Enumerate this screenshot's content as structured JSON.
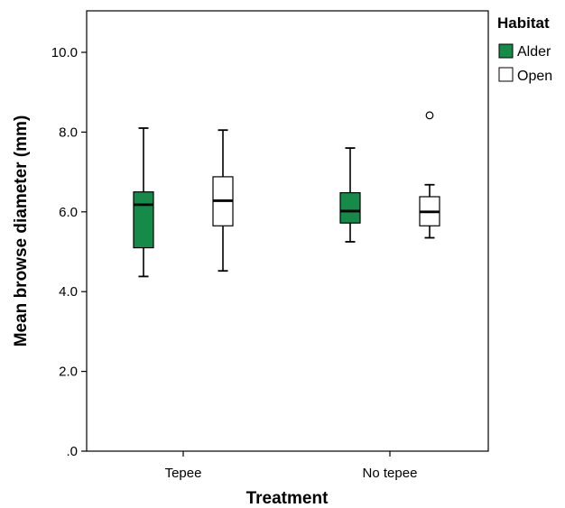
{
  "chart_data": {
    "type": "boxplot",
    "title": "",
    "xlabel": "Treatment",
    "ylabel": "Mean browse diameter (mm)",
    "ylim": [
      0,
      11
    ],
    "yticks": [
      0,
      2,
      4,
      6,
      8,
      10
    ],
    "ytick_labels": [
      ".0",
      "2.0",
      "4.0",
      "6.0",
      "8.0",
      "10.0"
    ],
    "categories": [
      "Tepee",
      "No tepee"
    ],
    "grid": false,
    "legend": {
      "title": "Habitat",
      "placement": "right-outside"
    },
    "series": [
      {
        "name": "Alder",
        "color": "#168a48",
        "boxes": [
          {
            "min": 4.38,
            "q1": 5.1,
            "median": 6.18,
            "q3": 6.5,
            "max": 8.1,
            "outliers": []
          },
          {
            "min": 5.25,
            "q1": 5.72,
            "median": 6.02,
            "q3": 6.48,
            "max": 7.6,
            "outliers": []
          }
        ]
      },
      {
        "name": "Open",
        "color": "#ffffff",
        "boxes": [
          {
            "min": 4.52,
            "q1": 5.65,
            "median": 6.28,
            "q3": 6.88,
            "max": 8.05,
            "outliers": []
          },
          {
            "min": 5.35,
            "q1": 5.65,
            "median": 6.0,
            "q3": 6.38,
            "max": 6.68,
            "outliers": [
              8.42
            ]
          }
        ]
      }
    ]
  }
}
